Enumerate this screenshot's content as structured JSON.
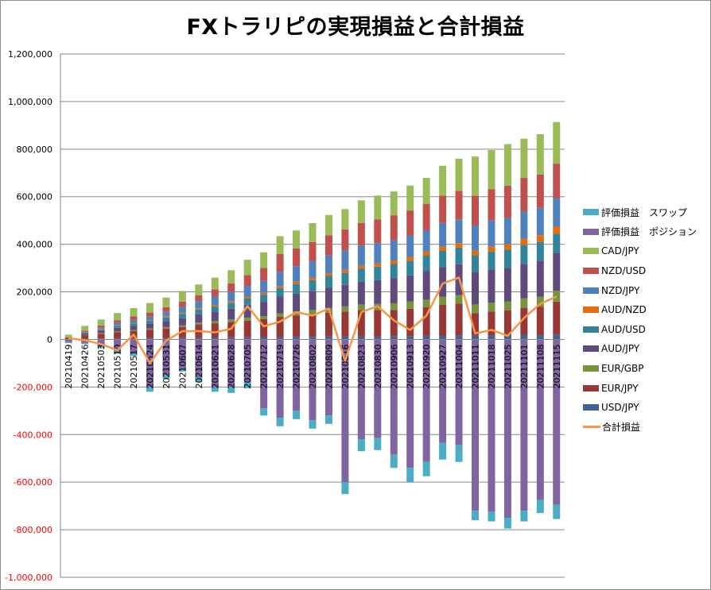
{
  "chart_data": {
    "type": "bar",
    "title": "FXトラリピの実現損益と合計損益",
    "ylim": [
      -1000000,
      1200000
    ],
    "ytick_step": 200000,
    "yticks": [
      "1,200,000",
      "1,000,000",
      "800,000",
      "600,000",
      "400,000",
      "200,000",
      "0",
      "-200,000",
      "-400,000",
      "-600,000",
      "-800,000",
      "-1,000,000"
    ],
    "grid": true,
    "legend_position": "right",
    "categories": [
      "20210419",
      "20210426",
      "20210503",
      "20210510",
      "20210517",
      "20210524",
      "20210531",
      "20210607",
      "20210614",
      "20210621",
      "20210628",
      "20210705",
      "20210712",
      "20210719",
      "20210726",
      "20210802",
      "20210809",
      "20210816",
      "20210823",
      "20210830",
      "20210906",
      "20210913",
      "20210920",
      "20210927",
      "20211004",
      "20211011",
      "20211018",
      "20211025",
      "20211101",
      "20211108",
      "20211115"
    ],
    "stack_series": [
      {
        "name": "USD/JPY",
        "color": "#3c6496",
        "values": [
          2000,
          3000,
          4000,
          5000,
          5000,
          6000,
          6000,
          7000,
          8000,
          8000,
          9000,
          9000,
          10000,
          10000,
          11000,
          11000,
          12000,
          12000,
          13000,
          13000,
          14000,
          14000,
          15000,
          15000,
          16000,
          16000,
          17000,
          17000,
          18000,
          18000,
          19000
        ]
      },
      {
        "name": "EUR/JPY",
        "color": "#983836",
        "values": [
          6000,
          15000,
          20000,
          25000,
          30000,
          35000,
          40000,
          45000,
          55000,
          60000,
          65000,
          70000,
          75000,
          85000,
          90000,
          95000,
          100000,
          105000,
          110000,
          110000,
          110000,
          115000,
          120000,
          130000,
          135000,
          95000,
          100000,
          105000,
          115000,
          120000,
          140000
        ]
      },
      {
        "name": "EUR/GBP",
        "color": "#77933c",
        "values": [
          0,
          2000,
          3000,
          4000,
          5000,
          5000,
          6000,
          7000,
          8000,
          9000,
          10000,
          12000,
          13000,
          15000,
          17000,
          18000,
          20000,
          22000,
          24000,
          26000,
          28000,
          30000,
          32000,
          34000,
          35000,
          36000,
          37000,
          38000,
          40000,
          42000,
          45000
        ]
      },
      {
        "name": "AUD/JPY",
        "color": "#604a7b",
        "values": [
          0,
          5000,
          10000,
          15000,
          17000,
          20000,
          25000,
          30000,
          35000,
          40000,
          45000,
          55000,
          60000,
          70000,
          75000,
          80000,
          85000,
          90000,
          95000,
          100000,
          105000,
          110000,
          120000,
          125000,
          130000,
          135000,
          140000,
          140000,
          145000,
          150000,
          160000
        ]
      },
      {
        "name": "AUD/USD",
        "color": "#31849b",
        "values": [
          0,
          3000,
          5000,
          8000,
          10000,
          12000,
          15000,
          18000,
          20000,
          22000,
          25000,
          27000,
          30000,
          35000,
          40000,
          45000,
          50000,
          52000,
          55000,
          57000,
          60000,
          62000,
          65000,
          68000,
          70000,
          72000,
          75000,
          77000,
          80000,
          80000,
          80000
        ]
      },
      {
        "name": "AUD/NZD",
        "color": "#e46c0a",
        "values": [
          0,
          1000,
          2000,
          2000,
          3000,
          3000,
          4000,
          4000,
          5000,
          6000,
          7000,
          7000,
          8000,
          9000,
          10000,
          10000,
          11000,
          12000,
          13000,
          14000,
          15000,
          16000,
          17000,
          18000,
          19000,
          20000,
          22000,
          24000,
          26000,
          28000,
          30000
        ]
      },
      {
        "name": "NZD/JPY",
        "color": "#4f81bd",
        "values": [
          0,
          3000,
          5000,
          10000,
          12000,
          15000,
          20000,
          25000,
          30000,
          35000,
          40000,
          45000,
          50000,
          60000,
          65000,
          70000,
          75000,
          80000,
          85000,
          85000,
          85000,
          90000,
          90000,
          100000,
          100000,
          105000,
          110000,
          110000,
          115000,
          115000,
          120000
        ]
      },
      {
        "name": "NZD/USD",
        "color": "#c0504d",
        "values": [
          0,
          5000,
          10000,
          12000,
          15000,
          17000,
          20000,
          23000,
          25000,
          30000,
          35000,
          45000,
          55000,
          75000,
          75000,
          80000,
          85000,
          90000,
          95000,
          100000,
          105000,
          105000,
          110000,
          115000,
          120000,
          125000,
          130000,
          135000,
          140000,
          140000,
          145000
        ]
      },
      {
        "name": "CAD/JPY",
        "color": "#9bbb59",
        "values": [
          12000,
          20000,
          25000,
          30000,
          35000,
          40000,
          40000,
          45000,
          45000,
          50000,
          55000,
          65000,
          65000,
          75000,
          75000,
          80000,
          85000,
          85000,
          95000,
          100000,
          100000,
          105000,
          110000,
          125000,
          135000,
          165000,
          165000,
          175000,
          165000,
          170000,
          175000
        ]
      }
    ],
    "negative_series": [
      {
        "name": "評価損益　ポジション",
        "color": "#8064a2",
        "values": [
          -10000,
          -15000,
          -30000,
          -50000,
          -60000,
          -200000,
          -150000,
          -120000,
          -160000,
          -200000,
          -200000,
          -180000,
          -290000,
          -330000,
          -300000,
          -340000,
          -320000,
          -600000,
          -420000,
          -415000,
          -485000,
          -540000,
          -515000,
          -435000,
          -445000,
          -720000,
          -725000,
          -750000,
          -720000,
          -675000,
          -695000
        ]
      },
      {
        "name": "評価損益　スワップ",
        "color": "#4bacc6",
        "values": [
          -5000,
          -5000,
          -7000,
          -10000,
          -10000,
          -20000,
          -15000,
          -15000,
          -20000,
          -20000,
          -25000,
          -25000,
          -30000,
          -35000,
          -35000,
          -35000,
          -35000,
          -50000,
          -50000,
          -50000,
          -55000,
          -60000,
          -60000,
          -70000,
          -70000,
          -40000,
          -40000,
          -45000,
          -45000,
          -55000,
          -60000
        ]
      }
    ],
    "line_series": {
      "name": "合計損益",
      "color": "#f79646",
      "values": [
        5000,
        -3000,
        -20000,
        -45000,
        20000,
        -100000,
        -5000,
        35000,
        35000,
        30000,
        45000,
        140000,
        55000,
        75000,
        115000,
        100000,
        130000,
        -90000,
        115000,
        140000,
        80000,
        40000,
        100000,
        235000,
        260000,
        25000,
        40000,
        15000,
        90000,
        150000,
        180000
      ]
    }
  },
  "legend_order": [
    "評価損益　スワップ",
    "評価損益　ポジション",
    "CAD/JPY",
    "NZD/USD",
    "NZD/JPY",
    "AUD/NZD",
    "AUD/USD",
    "AUD/JPY",
    "EUR/GBP",
    "EUR/JPY",
    "USD/JPY",
    "合計損益"
  ]
}
